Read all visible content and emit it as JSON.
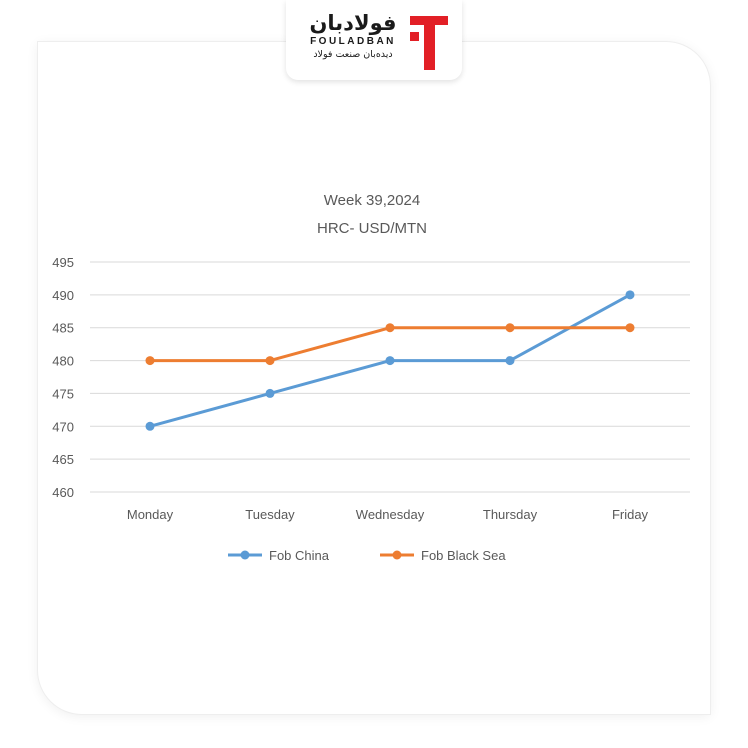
{
  "brand": {
    "name_fa": "فولادبان",
    "name_en": "FOULADBAN",
    "tagline_fa": "دیده‌بان صنعت فولاد",
    "accent_color": "#e21f26"
  },
  "chart_data": {
    "type": "line",
    "title": [
      "Week 39,2024",
      "HRC- USD/MTN"
    ],
    "categories": [
      "Monday",
      "Tuesday",
      "Wednesday",
      "Thursday",
      "Friday"
    ],
    "series": [
      {
        "name": "Fob China",
        "color": "#5b9bd5",
        "values": [
          470,
          475,
          480,
          480,
          490
        ]
      },
      {
        "name": "Fob Black Sea",
        "color": "#ed7d31",
        "values": [
          480,
          480,
          485,
          485,
          485
        ]
      }
    ],
    "ylim": [
      460,
      495
    ],
    "yticks": [
      460,
      465,
      470,
      475,
      480,
      485,
      490,
      495
    ],
    "grid": true,
    "legend": "bottom"
  }
}
